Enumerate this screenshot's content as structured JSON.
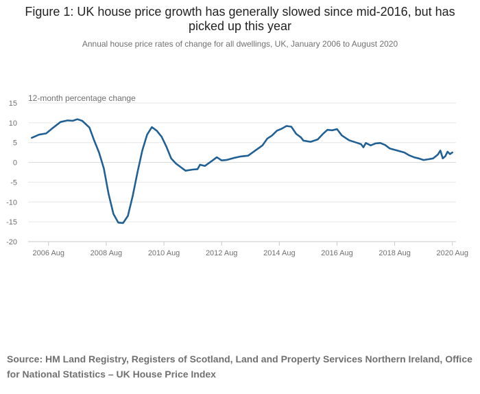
{
  "chart_data": {
    "type": "line",
    "title": "Figure 1: UK house price growth has generally slowed since mid-2016, but has picked up this year",
    "subtitle": "Annual house price rates of change for all dwellings, UK, January 2006 to August 2020",
    "ylabel": "12-month percentage change",
    "xlabel": "",
    "ylim": [
      -20,
      15
    ],
    "yticks": [
      -20,
      -15,
      -10,
      -5,
      0,
      5,
      10,
      15
    ],
    "xlim": [
      "2006-01",
      "2020-08"
    ],
    "xticks": [
      {
        "x": "2006-08",
        "label": "2006 Aug"
      },
      {
        "x": "2008-08",
        "label": "2008 Aug"
      },
      {
        "x": "2010-08",
        "label": "2010 Aug"
      },
      {
        "x": "2012-08",
        "label": "2012 Aug"
      },
      {
        "x": "2014-08",
        "label": "2014 Aug"
      },
      {
        "x": "2016-08",
        "label": "2016 Aug"
      },
      {
        "x": "2018-08",
        "label": "2018 Aug"
      },
      {
        "x": "2020-08",
        "label": "2020 Aug"
      }
    ],
    "grid": "horizontal",
    "line_color": "#206095",
    "series": [
      {
        "name": "",
        "points": [
          {
            "x": "2006-01",
            "y": 6.2
          },
          {
            "x": "2006-04",
            "y": 7.0
          },
          {
            "x": "2006-07",
            "y": 7.3
          },
          {
            "x": "2006-10",
            "y": 8.8
          },
          {
            "x": "2007-01",
            "y": 10.2
          },
          {
            "x": "2007-04",
            "y": 10.6
          },
          {
            "x": "2007-06",
            "y": 10.5
          },
          {
            "x": "2007-08",
            "y": 10.9
          },
          {
            "x": "2007-10",
            "y": 10.5
          },
          {
            "x": "2008-01",
            "y": 8.8
          },
          {
            "x": "2008-03",
            "y": 5.5
          },
          {
            "x": "2008-05",
            "y": 2.5
          },
          {
            "x": "2008-07",
            "y": -1.5
          },
          {
            "x": "2008-09",
            "y": -8.0
          },
          {
            "x": "2008-11",
            "y": -13.0
          },
          {
            "x": "2009-01",
            "y": -15.2
          },
          {
            "x": "2009-03",
            "y": -15.3
          },
          {
            "x": "2009-05",
            "y": -13.5
          },
          {
            "x": "2009-07",
            "y": -8.5
          },
          {
            "x": "2009-09",
            "y": -2.5
          },
          {
            "x": "2009-11",
            "y": 3.0
          },
          {
            "x": "2010-01",
            "y": 7.0
          },
          {
            "x": "2010-03",
            "y": 8.9
          },
          {
            "x": "2010-05",
            "y": 8.0
          },
          {
            "x": "2010-07",
            "y": 6.5
          },
          {
            "x": "2010-09",
            "y": 4.0
          },
          {
            "x": "2010-11",
            "y": 1.0
          },
          {
            "x": "2011-01",
            "y": -0.3
          },
          {
            "x": "2011-03",
            "y": -1.2
          },
          {
            "x": "2011-05",
            "y": -2.1
          },
          {
            "x": "2011-08",
            "y": -1.8
          },
          {
            "x": "2011-10",
            "y": -1.7
          },
          {
            "x": "2011-11",
            "y": -0.6
          },
          {
            "x": "2012-01",
            "y": -0.9
          },
          {
            "x": "2012-04",
            "y": 0.4
          },
          {
            "x": "2012-06",
            "y": 1.3
          },
          {
            "x": "2012-08",
            "y": 0.5
          },
          {
            "x": "2012-10",
            "y": 0.6
          },
          {
            "x": "2013-01",
            "y": 1.1
          },
          {
            "x": "2013-04",
            "y": 1.5
          },
          {
            "x": "2013-07",
            "y": 1.7
          },
          {
            "x": "2013-10",
            "y": 3.0
          },
          {
            "x": "2014-01",
            "y": 4.3
          },
          {
            "x": "2014-03",
            "y": 6.0
          },
          {
            "x": "2014-05",
            "y": 6.8
          },
          {
            "x": "2014-07",
            "y": 8.0
          },
          {
            "x": "2014-09",
            "y": 8.5
          },
          {
            "x": "2014-11",
            "y": 9.2
          },
          {
            "x": "2015-01",
            "y": 9.0
          },
          {
            "x": "2015-03",
            "y": 7.2
          },
          {
            "x": "2015-05",
            "y": 6.3
          },
          {
            "x": "2015-06",
            "y": 5.5
          },
          {
            "x": "2015-09",
            "y": 5.2
          },
          {
            "x": "2015-12",
            "y": 5.8
          },
          {
            "x": "2016-02",
            "y": 7.1
          },
          {
            "x": "2016-04",
            "y": 8.2
          },
          {
            "x": "2016-06",
            "y": 8.1
          },
          {
            "x": "2016-08",
            "y": 8.4
          },
          {
            "x": "2016-10",
            "y": 6.8
          },
          {
            "x": "2017-01",
            "y": 5.6
          },
          {
            "x": "2017-04",
            "y": 5.0
          },
          {
            "x": "2017-06",
            "y": 4.6
          },
          {
            "x": "2017-07",
            "y": 3.8
          },
          {
            "x": "2017-08",
            "y": 4.9
          },
          {
            "x": "2017-10",
            "y": 4.3
          },
          {
            "x": "2017-12",
            "y": 4.8
          },
          {
            "x": "2018-02",
            "y": 4.9
          },
          {
            "x": "2018-04",
            "y": 4.4
          },
          {
            "x": "2018-06",
            "y": 3.5
          },
          {
            "x": "2018-09",
            "y": 3.0
          },
          {
            "x": "2018-12",
            "y": 2.5
          },
          {
            "x": "2019-02",
            "y": 1.8
          },
          {
            "x": "2019-04",
            "y": 1.3
          },
          {
            "x": "2019-06",
            "y": 1.0
          },
          {
            "x": "2019-08",
            "y": 0.6
          },
          {
            "x": "2019-10",
            "y": 0.8
          },
          {
            "x": "2019-12",
            "y": 1.0
          },
          {
            "x": "2020-02",
            "y": 2.0
          },
          {
            "x": "2020-03",
            "y": 3.0
          },
          {
            "x": "2020-04",
            "y": 1.0
          },
          {
            "x": "2020-05",
            "y": 1.5
          },
          {
            "x": "2020-06",
            "y": 2.7
          },
          {
            "x": "2020-07",
            "y": 2.1
          },
          {
            "x": "2020-08",
            "y": 2.5
          }
        ]
      }
    ]
  },
  "source": "Source: HM Land Registry, Registers of Scotland, Land and Property Services Northern Ireland, Office for National Statistics – UK House Price Index"
}
